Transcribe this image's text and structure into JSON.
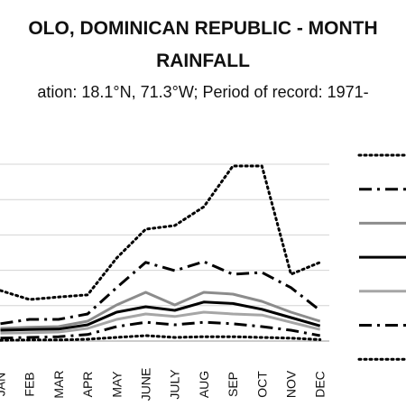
{
  "chart_data": {
    "type": "line",
    "title_line1": "OLO, DOMINICAN REPUBLIC - MONTH",
    "title_line2": "RAINFALL",
    "subtitle": "ation: 18.1°N, 71.3°W; Period of record: 1971-",
    "categories": [
      "JAN",
      "FEB",
      "MAR",
      "APR",
      "MAY",
      "JUNE",
      "JULY",
      "AUG",
      "SEP",
      "OCT",
      "NOV",
      "DEC"
    ],
    "grid": true,
    "legend_position": "right",
    "series": [
      {
        "style": "dotted",
        "color": "#000000",
        "values": [
          140,
          115,
          122,
          128,
          230,
          310,
          320,
          372,
          485,
          485,
          185,
          218
        ]
      },
      {
        "style": "dashdot",
        "color": "#000000",
        "values": [
          48,
          60,
          60,
          75,
          148,
          218,
          195,
          220,
          185,
          190,
          148,
          85
        ]
      },
      {
        "style": "solid",
        "color": "#8c8c8c",
        "values": [
          35,
          38,
          40,
          55,
          100,
          135,
          100,
          135,
          130,
          110,
          80,
          55
        ]
      },
      {
        "style": "solid",
        "color": "#000000",
        "values": [
          30,
          32,
          33,
          45,
          80,
          95,
          85,
          108,
          104,
          88,
          65,
          42
        ]
      },
      {
        "style": "solid",
        "color": "#a6a6a6",
        "values": [
          22,
          23,
          25,
          35,
          60,
          75,
          68,
          80,
          75,
          72,
          52,
          32
        ]
      },
      {
        "style": "dashdot",
        "color": "#000000",
        "values": [
          8,
          10,
          12,
          18,
          40,
          52,
          45,
          52,
          48,
          40,
          30,
          15
        ]
      },
      {
        "style": "dotted",
        "color": "#000000",
        "values": [
          2,
          3,
          3,
          5,
          10,
          15,
          10,
          12,
          12,
          10,
          8,
          4
        ]
      }
    ]
  }
}
